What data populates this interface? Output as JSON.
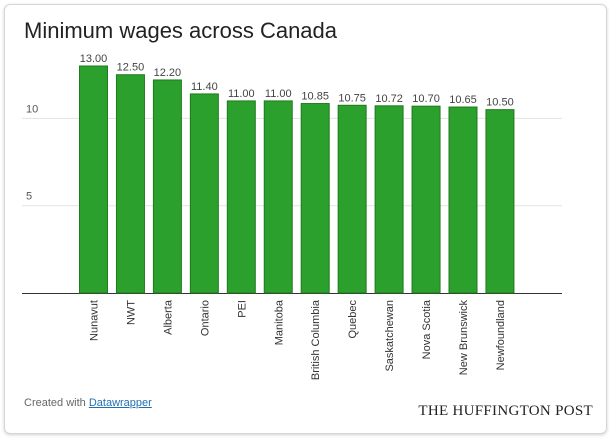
{
  "chart_data": {
    "type": "bar",
    "title": "Minimum wages across Canada",
    "categories": [
      "Nunavut",
      "NWT",
      "Alberta",
      "Ontario",
      "PEI",
      "Manitoba",
      "British Columbia",
      "Quebec",
      "Saskatchewan",
      "Nova Scotia",
      "New Brunswick",
      "Newfoundland"
    ],
    "values": [
      13.0,
      12.5,
      12.2,
      11.4,
      11.0,
      11.0,
      10.85,
      10.75,
      10.72,
      10.7,
      10.65,
      10.5
    ],
    "value_labels": [
      "13.00",
      "12.50",
      "12.20",
      "11.40",
      "11.00",
      "11.00",
      "10.85",
      "10.75",
      "10.72",
      "10.70",
      "10.65",
      "10.50"
    ],
    "yticks": [
      5,
      10
    ],
    "ylim": [
      0,
      13.5
    ],
    "grid": true,
    "xlabel": "",
    "ylabel": "",
    "bar_color": "#2ca02c",
    "bar_border_color": "#1f7a1f"
  },
  "footer": {
    "credit_prefix": "Created with",
    "credit_link": "Datawrapper",
    "brand": "THE HUFFINGTON POST"
  }
}
